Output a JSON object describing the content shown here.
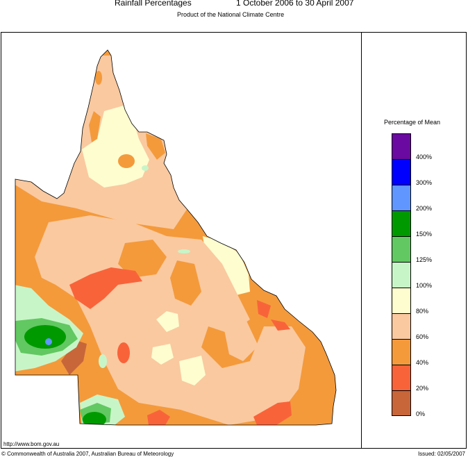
{
  "header": {
    "title": "Rainfall Percentages",
    "period": "1 October 2006 to 30 April 2007",
    "subtitle": "Product of the National Climate Centre"
  },
  "legend": {
    "title": "Percentage of Mean",
    "bands": [
      {
        "color": "#6a0aa0"
      },
      {
        "color": "#0000ff"
      },
      {
        "color": "#5f96ff"
      },
      {
        "color": "#009a00"
      },
      {
        "color": "#62c862"
      },
      {
        "color": "#c8f5c8"
      },
      {
        "color": "#fdfdd0"
      },
      {
        "color": "#fac9a0"
      },
      {
        "color": "#f49a3b"
      },
      {
        "color": "#f9633a"
      },
      {
        "color": "#c8663a"
      }
    ],
    "ticks": [
      "400%",
      "300%",
      "200%",
      "150%",
      "125%",
      "100%",
      "80%",
      "60%",
      "40%",
      "20%",
      "0%"
    ]
  },
  "colors": {
    "b0_20": "#c8663a",
    "b20_40": "#f9633a",
    "b40_60": "#f49a3b",
    "b60_80": "#fac9a0",
    "b80_100": "#fdfdd0",
    "b100_125": "#c8f5c8",
    "b125_150": "#62c862",
    "b150_200": "#009a00",
    "b200_300": "#5f96ff"
  },
  "footer": {
    "url": "http://www.bom.gov.au",
    "copyright": "© Commonwealth of Australia 2007, Australian Bureau of Meteorology",
    "issued": "Issued: 02/05/2007"
  }
}
